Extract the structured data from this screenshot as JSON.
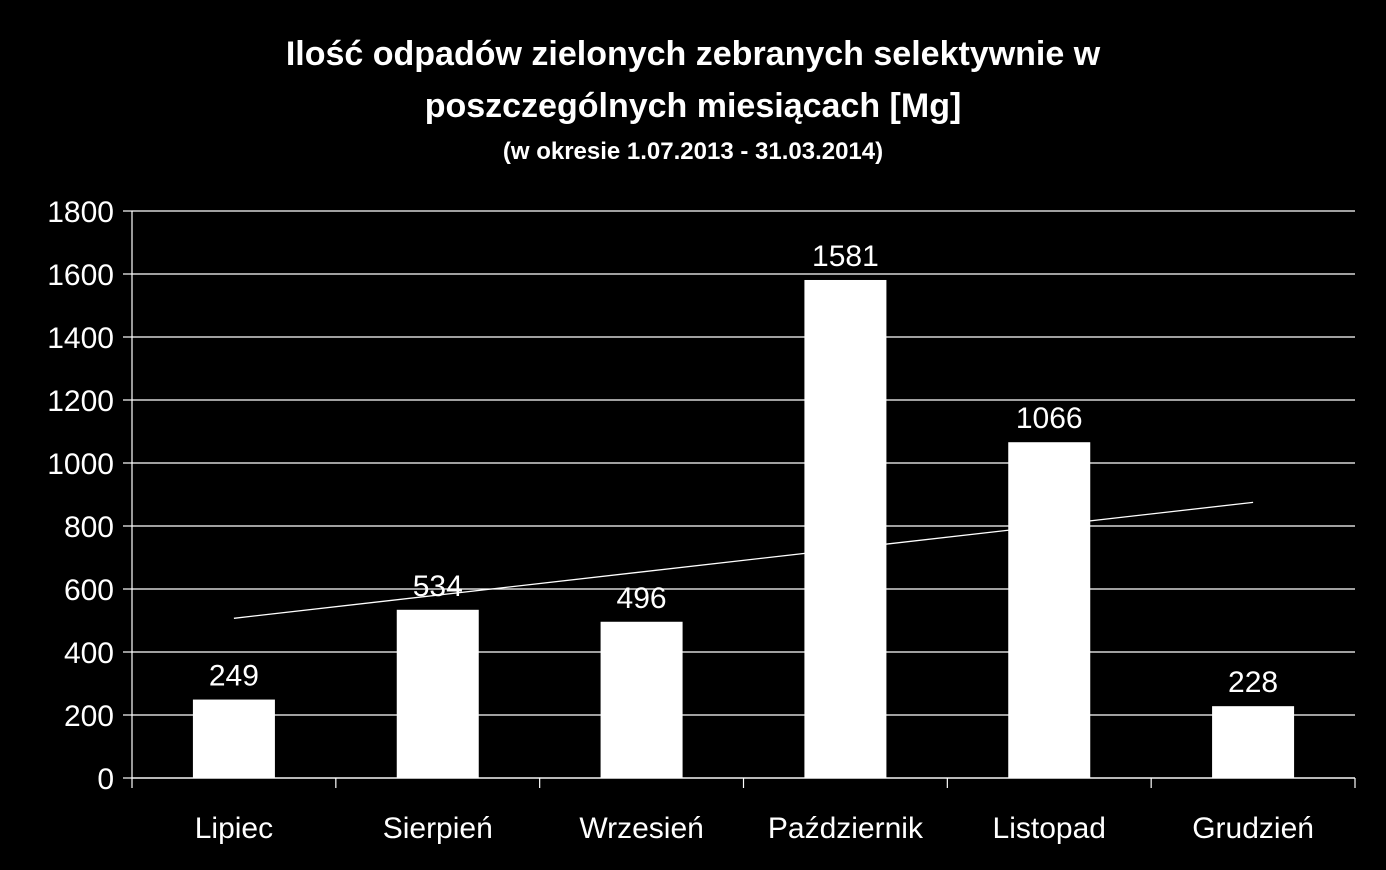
{
  "chart_data": {
    "type": "bar",
    "title_line1": "Ilość odpadów zielonych zebranych selektywnie w",
    "title_line2": "poszczególnych miesiącach [Mg]",
    "subtitle": "(w okresie 1.07.2013 - 31.03.2014)",
    "categories": [
      "Lipiec",
      "Sierpień",
      "Wrzesień",
      "Październik",
      "Listopad",
      "Grudzień"
    ],
    "values": [
      249,
      534,
      496,
      1581,
      1066,
      228
    ],
    "data_labels": [
      "249",
      "534",
      "496",
      "1581",
      "1066",
      "228"
    ],
    "ylim": [
      0,
      1800
    ],
    "yticks": [
      0,
      200,
      400,
      600,
      800,
      1000,
      1200,
      1400,
      1600,
      1800
    ],
    "ytick_labels": [
      "0",
      "200",
      "400",
      "600",
      "800",
      "1000",
      "1200",
      "1400",
      "1600",
      "1800"
    ],
    "trendline": {
      "type": "linear",
      "start_value": 507,
      "end_value": 875
    },
    "grid": true,
    "legend": "none",
    "colors": {
      "background": "#000000",
      "bar": "#ffffff",
      "text": "#ffffff",
      "grid": "#ffffff",
      "trend": "#ffffff"
    }
  }
}
